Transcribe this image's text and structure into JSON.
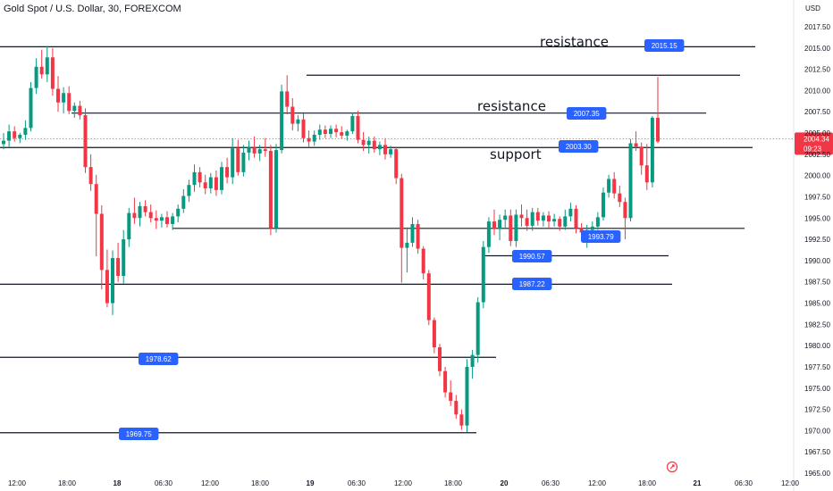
{
  "chart_title": "Gold Spot / U.S. Dollar, 30, FOREXCOM",
  "currency_label": "USD",
  "colors": {
    "bull": "#089981",
    "bear": "#f23645",
    "line": "#131722",
    "label_bg": "#2962ff",
    "price_tag": "#f23645"
  },
  "current_price": {
    "price": "2004.34",
    "countdown": "09:23"
  },
  "chart_data": {
    "type": "candlestick",
    "title": "Gold Spot / U.S. Dollar, 30, FOREXCOM",
    "ylabel": "USD",
    "ylim": [
      1965,
      2020
    ],
    "y_ticks": [
      "2017.50",
      "2015.00",
      "2012.50",
      "2010.00",
      "2007.50",
      "2005.00",
      "2002.50",
      "2000.00",
      "1997.50",
      "1995.00",
      "1992.50",
      "1990.00",
      "1987.50",
      "1985.00",
      "1982.50",
      "1980.00",
      "1977.50",
      "1975.00",
      "1972.50",
      "1970.00",
      "1967.50",
      "1965.00"
    ],
    "x_ticks": [
      "12:00",
      "18:00",
      "18",
      "06:30",
      "12:00",
      "18:00",
      "19",
      "06:30",
      "12:00",
      "18:00",
      "20",
      "06:30",
      "12:00",
      "18:00",
      "21",
      "06:30",
      "12:00"
    ],
    "levels": [
      {
        "name": "resistance",
        "value": 2015.15
      },
      {
        "name": "",
        "value": 2011.8
      },
      {
        "name": "resistance",
        "value": 2007.35
      },
      {
        "name": "support",
        "value": 2003.3
      },
      {
        "name": "",
        "value": 1993.79
      },
      {
        "name": "",
        "value": 1990.57
      },
      {
        "name": "",
        "value": 1987.22
      },
      {
        "name": "",
        "value": 1978.62
      },
      {
        "name": "",
        "value": 1969.75
      }
    ],
    "price_labels": [
      "2015.15",
      "2007.35",
      "2003.30",
      "1993.79",
      "1990.57",
      "1987.22",
      "1978.62",
      "1969.75"
    ],
    "annotations": [
      "resistance",
      "resistance",
      "support"
    ],
    "ohlc": [
      [
        2003.7,
        2005.0,
        2003.1,
        2004.1
      ],
      [
        2004.1,
        2006.0,
        2003.4,
        2005.2
      ],
      [
        2005.2,
        2005.8,
        2004.0,
        2004.4
      ],
      [
        2004.4,
        2005.0,
        2003.8,
        2004.8
      ],
      [
        2004.8,
        2006.5,
        2004.2,
        2005.6
      ],
      [
        2005.6,
        2011.0,
        2005.2,
        2010.3
      ],
      [
        2010.3,
        2013.8,
        2009.6,
        2012.8
      ],
      [
        2012.8,
        2014.8,
        2011.4,
        2011.9
      ],
      [
        2011.9,
        2015.2,
        2011.0,
        2013.9
      ],
      [
        2013.9,
        2015.0,
        2009.4,
        2010.2
      ],
      [
        2010.2,
        2011.7,
        2007.5,
        2008.6
      ],
      [
        2008.6,
        2010.4,
        2007.3,
        2009.7
      ],
      [
        2009.7,
        2010.5,
        2007.2,
        2007.6
      ],
      [
        2007.6,
        2008.6,
        2006.8,
        2008.2
      ],
      [
        2008.2,
        2008.8,
        2006.6,
        2007.1
      ],
      [
        2007.1,
        2007.9,
        2000.3,
        2001.0
      ],
      [
        2001.0,
        2002.5,
        1998.2,
        1999.0
      ],
      [
        1999.0,
        2000.1,
        1990.5,
        1995.5
      ],
      [
        1995.5,
        1996.5,
        1986.6,
        1988.9
      ],
      [
        1988.9,
        1991.3,
        1984.5,
        1985.0
      ],
      [
        1985.0,
        1991.2,
        1983.6,
        1990.3
      ],
      [
        1990.3,
        1992.1,
        1987.5,
        1988.2
      ],
      [
        1988.2,
        1993.6,
        1987.3,
        1992.5
      ],
      [
        1992.5,
        1996.2,
        1991.6,
        1995.6
      ],
      [
        1995.6,
        1997.4,
        1994.3,
        1995.0
      ],
      [
        1995.0,
        1996.9,
        1994.0,
        1996.4
      ],
      [
        1996.4,
        1997.1,
        1995.2,
        1995.7
      ],
      [
        1995.7,
        1996.6,
        1994.5,
        1995.0
      ],
      [
        1995.0,
        1995.9,
        1993.7,
        1994.7
      ],
      [
        1994.7,
        1995.5,
        1993.9,
        1995.1
      ],
      [
        1995.1,
        1995.8,
        1993.9,
        1994.3
      ],
      [
        1994.3,
        1995.6,
        1993.6,
        1995.2
      ],
      [
        1995.2,
        1996.6,
        1994.5,
        1996.1
      ],
      [
        1996.1,
        1998.4,
        1995.6,
        1997.6
      ],
      [
        1997.6,
        1999.5,
        1996.9,
        1998.9
      ],
      [
        1998.9,
        2001.3,
        1998.1,
        2000.4
      ],
      [
        2000.4,
        2001.0,
        1998.6,
        1999.2
      ],
      [
        1999.2,
        2000.1,
        1997.8,
        1998.5
      ],
      [
        1998.5,
        2000.3,
        1997.9,
        1999.8
      ],
      [
        1999.8,
        2000.6,
        1997.6,
        1998.3
      ],
      [
        1998.3,
        2001.6,
        1997.8,
        2001.0
      ],
      [
        2001.0,
        2002.1,
        1999.1,
        1999.8
      ],
      [
        1999.8,
        2004.4,
        1999.0,
        2003.2
      ],
      [
        2003.2,
        2004.2,
        2000.0,
        2000.4
      ],
      [
        2000.4,
        2003.6,
        1999.9,
        2002.7
      ],
      [
        2002.7,
        2004.1,
        2001.8,
        2003.3
      ],
      [
        2003.3,
        2004.6,
        2002.1,
        2002.6
      ],
      [
        2002.6,
        2003.6,
        2001.7,
        2003.1
      ],
      [
        2003.1,
        2004.4,
        2002.2,
        2002.9
      ],
      [
        2002.9,
        2003.6,
        1993.0,
        1993.8
      ],
      [
        1993.8,
        2003.7,
        1993.3,
        2003.0
      ],
      [
        2003.0,
        2010.7,
        2002.6,
        2009.9
      ],
      [
        2009.9,
        2011.8,
        2007.2,
        2008.1
      ],
      [
        2008.1,
        2009.1,
        2005.3,
        2006.1
      ],
      [
        2006.1,
        2007.1,
        2005.2,
        2006.6
      ],
      [
        2006.6,
        2007.3,
        2003.9,
        2004.4
      ],
      [
        2004.4,
        2005.3,
        2003.3,
        2004.0
      ],
      [
        2004.0,
        2005.3,
        2003.5,
        2004.8
      ],
      [
        2004.8,
        2006.0,
        2004.2,
        2005.4
      ],
      [
        2005.4,
        2005.9,
        2004.4,
        2004.9
      ],
      [
        2004.9,
        2005.9,
        2004.4,
        2005.5
      ],
      [
        2005.5,
        2006.0,
        2004.5,
        2005.1
      ],
      [
        2005.1,
        2005.8,
        2004.3,
        2004.7
      ],
      [
        2004.7,
        2005.4,
        2004.1,
        2005.2
      ],
      [
        2005.2,
        2007.4,
        2004.9,
        2007.0
      ],
      [
        2007.0,
        2007.6,
        2003.8,
        2004.2
      ],
      [
        2004.2,
        2005.1,
        2002.9,
        2003.6
      ],
      [
        2003.6,
        2004.6,
        2002.6,
        2004.1
      ],
      [
        2004.1,
        2004.6,
        2002.7,
        2003.1
      ],
      [
        2003.1,
        2004.0,
        2002.4,
        2003.6
      ],
      [
        2003.6,
        2004.4,
        2001.9,
        2002.5
      ],
      [
        2002.5,
        2003.5,
        2002.1,
        2003.1
      ],
      [
        2003.1,
        2003.4,
        1999.0,
        1999.7
      ],
      [
        1999.7,
        2000.2,
        1987.4,
        1991.5
      ],
      [
        1991.5,
        1993.9,
        1988.6,
        1992.1
      ],
      [
        1992.1,
        1995.1,
        1991.6,
        1994.3
      ],
      [
        1994.3,
        1994.8,
        1990.8,
        1991.4
      ],
      [
        1991.4,
        1991.7,
        1987.8,
        1988.5
      ],
      [
        1988.5,
        1988.9,
        1982.4,
        1983.0
      ],
      [
        1983.0,
        1983.3,
        1979.1,
        1979.8
      ],
      [
        1979.8,
        1980.2,
        1976.4,
        1977.0
      ],
      [
        1977.0,
        1977.5,
        1973.9,
        1974.5
      ],
      [
        1974.5,
        1975.9,
        1972.9,
        1973.5
      ],
      [
        1973.5,
        1974.2,
        1971.4,
        1971.9
      ],
      [
        1971.9,
        1972.5,
        1970.1,
        1970.6
      ],
      [
        1970.6,
        1978.4,
        1969.8,
        1977.5
      ],
      [
        1977.5,
        1979.5,
        1976.1,
        1978.9
      ],
      [
        1978.9,
        1985.7,
        1978.0,
        1985.1
      ],
      [
        1985.1,
        1992.3,
        1984.4,
        1991.6
      ],
      [
        1991.6,
        1995.1,
        1990.9,
        1994.6
      ],
      [
        1994.6,
        1996.0,
        1993.0,
        1993.7
      ],
      [
        1993.7,
        1995.4,
        1992.4,
        1994.8
      ],
      [
        1994.8,
        1996.0,
        1993.9,
        1995.3
      ],
      [
        1995.3,
        1996.0,
        1991.7,
        1992.3
      ],
      [
        1992.3,
        1996.0,
        1991.6,
        1995.4
      ],
      [
        1995.4,
        1996.6,
        1994.0,
        1995.0
      ],
      [
        1995.0,
        1996.0,
        1993.5,
        1994.1
      ],
      [
        1994.1,
        1996.2,
        1993.5,
        1995.7
      ],
      [
        1995.7,
        1996.2,
        1994.1,
        1994.7
      ],
      [
        1994.7,
        1995.7,
        1994.0,
        1995.3
      ],
      [
        1995.3,
        1995.8,
        1993.8,
        1994.6
      ],
      [
        1994.6,
        1995.5,
        1994.0,
        1994.9
      ],
      [
        1994.9,
        1995.2,
        1993.5,
        1994.0
      ],
      [
        1994.0,
        1996.0,
        1993.6,
        1995.2
      ],
      [
        1995.2,
        1996.8,
        1994.6,
        1996.1
      ],
      [
        1996.1,
        1996.5,
        1993.2,
        1993.8
      ],
      [
        1993.8,
        1994.4,
        1992.6,
        1993.3
      ],
      [
        1993.3,
        1994.2,
        1991.5,
        1993.6
      ],
      [
        1993.6,
        1994.6,
        1992.5,
        1994.0
      ],
      [
        1994.0,
        1995.7,
        1993.6,
        1995.1
      ],
      [
        1995.1,
        1998.6,
        1994.7,
        1998.0
      ],
      [
        1998.0,
        2000.1,
        1997.4,
        1999.6
      ],
      [
        1999.6,
        2000.4,
        1997.3,
        1997.9
      ],
      [
        1997.9,
        1998.8,
        1996.3,
        1996.9
      ],
      [
        1996.9,
        1997.4,
        1992.5,
        1995.0
      ],
      [
        1995.0,
        2004.3,
        1994.6,
        2003.8
      ],
      [
        2003.8,
        2005.2,
        2002.9,
        2003.4
      ],
      [
        2003.4,
        2003.9,
        2000.1,
        2001.2
      ],
      [
        2001.2,
        2003.7,
        1998.3,
        1999.2
      ],
      [
        1999.2,
        2007.0,
        1998.6,
        2006.8
      ],
      [
        2006.8,
        2011.6,
        2003.8,
        2004.0
      ]
    ]
  }
}
